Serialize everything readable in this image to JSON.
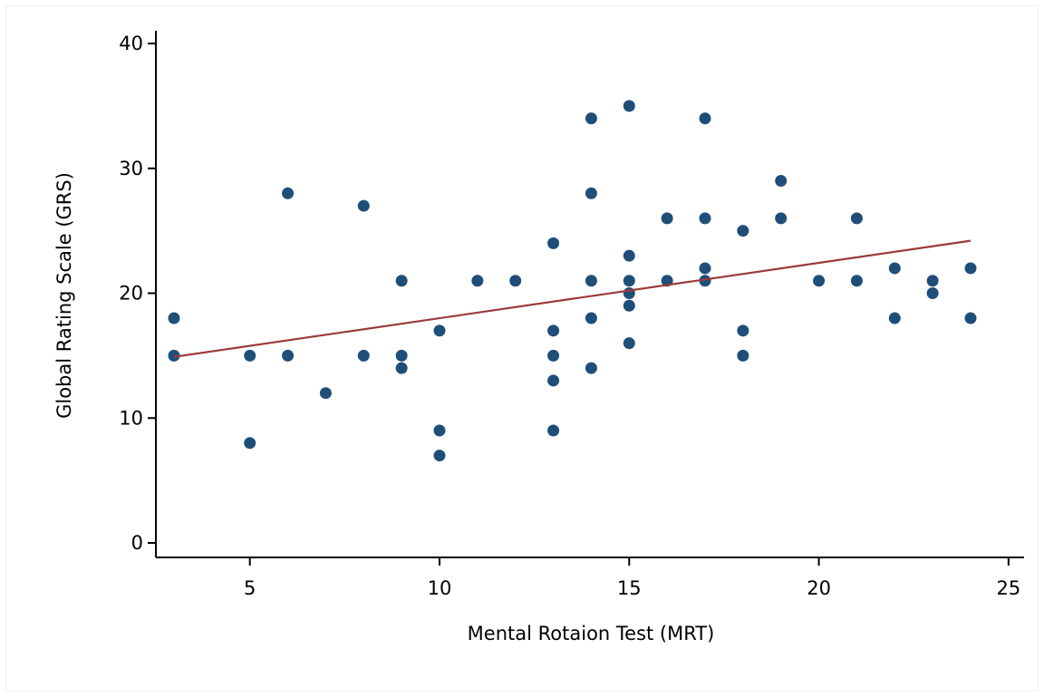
{
  "chart_data": {
    "type": "scatter",
    "xlabel": "Mental Rotaion Test (MRT)",
    "ylabel": "Global Rating Scale (GRS)",
    "xlim": [
      2.7,
      25.3
    ],
    "ylim": [
      -1,
      41
    ],
    "x_ticks": [
      5,
      10,
      15,
      20,
      25
    ],
    "y_ticks": [
      0,
      10,
      20,
      30,
      40
    ],
    "x_tick_labels": [
      "5",
      "10",
      "15",
      "20",
      "25"
    ],
    "y_tick_labels": [
      "0",
      "10",
      "20",
      "30",
      "40"
    ],
    "grid": false,
    "legend": "none",
    "colors": {
      "points": "#1f4e79",
      "fit_line": "#9b3a3a",
      "axis": "#000000"
    },
    "series": [
      {
        "kind": "points",
        "points": [
          [
            3,
            18
          ],
          [
            3,
            15
          ],
          [
            5,
            15
          ],
          [
            5,
            8
          ],
          [
            6,
            28
          ],
          [
            6,
            15
          ],
          [
            7,
            12
          ],
          [
            8,
            27
          ],
          [
            8,
            15
          ],
          [
            9,
            21
          ],
          [
            9,
            15
          ],
          [
            9,
            14
          ],
          [
            10,
            17
          ],
          [
            10,
            9
          ],
          [
            10,
            7
          ],
          [
            11,
            21
          ],
          [
            12,
            21
          ],
          [
            13,
            24
          ],
          [
            13,
            17
          ],
          [
            13,
            15
          ],
          [
            13,
            13
          ],
          [
            13,
            9
          ],
          [
            14,
            34
          ],
          [
            14,
            28
          ],
          [
            14,
            21
          ],
          [
            14,
            18
          ],
          [
            14,
            14
          ],
          [
            15,
            35
          ],
          [
            15,
            23
          ],
          [
            15,
            21
          ],
          [
            15,
            20
          ],
          [
            15,
            19
          ],
          [
            15,
            16
          ],
          [
            16,
            26
          ],
          [
            16,
            21
          ],
          [
            17,
            34
          ],
          [
            17,
            26
          ],
          [
            17,
            22
          ],
          [
            17,
            21
          ],
          [
            18,
            25
          ],
          [
            18,
            17
          ],
          [
            18,
            15
          ],
          [
            19,
            29
          ],
          [
            19,
            26
          ],
          [
            20,
            21
          ],
          [
            21,
            26
          ],
          [
            21,
            21
          ],
          [
            22,
            22
          ],
          [
            22,
            18
          ],
          [
            23,
            21
          ],
          [
            23,
            20
          ],
          [
            24,
            22
          ],
          [
            24,
            18
          ]
        ]
      },
      {
        "kind": "fitted-line",
        "x": [
          3,
          24
        ],
        "y": [
          14.9,
          24.2
        ]
      }
    ]
  }
}
